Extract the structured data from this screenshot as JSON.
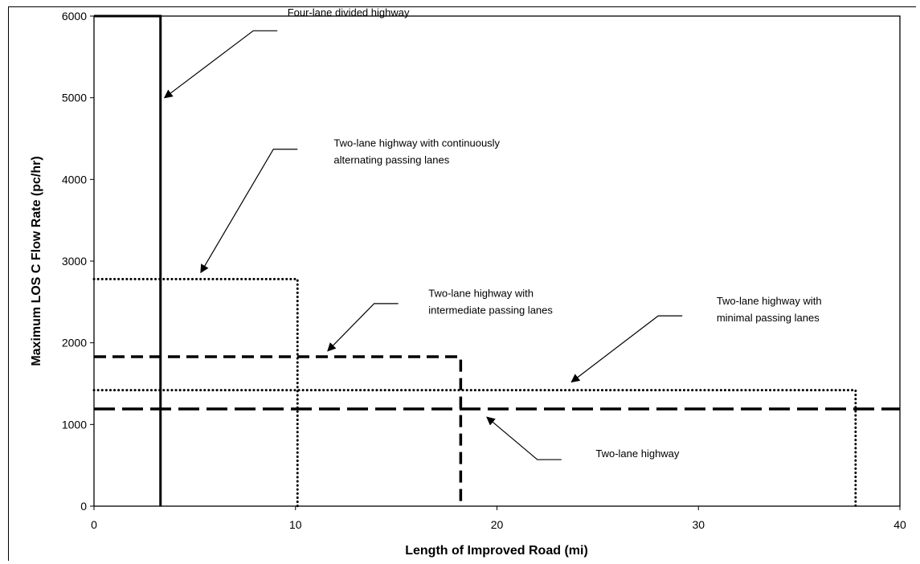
{
  "chart_data": {
    "type": "line",
    "title": "",
    "xlabel": "Length of Improved Road (mi)",
    "ylabel": "Maximum LOS C Flow Rate (pc/hr)",
    "xlim": [
      0,
      40
    ],
    "ylim": [
      0,
      6000
    ],
    "x_ticks": [
      0,
      10,
      20,
      30,
      40
    ],
    "y_ticks": [
      0,
      1000,
      2000,
      3000,
      4000,
      5000,
      6000
    ],
    "grid": false,
    "legend": "none",
    "series": [
      {
        "style": "solid",
        "points": [
          [
            0,
            6000
          ],
          [
            3.3,
            6000
          ],
          [
            3.3,
            0
          ]
        ]
      },
      {
        "style": "dotted",
        "points": [
          [
            0,
            2780
          ],
          [
            10.1,
            2780
          ],
          [
            10.1,
            0
          ]
        ]
      },
      {
        "style": "dashed",
        "points": [
          [
            0,
            1830
          ],
          [
            18.2,
            1830
          ],
          [
            18.2,
            0
          ]
        ]
      },
      {
        "style": "dotted",
        "points": [
          [
            0,
            1420
          ],
          [
            37.8,
            1420
          ],
          [
            37.8,
            0
          ]
        ]
      },
      {
        "style": "long-dashed",
        "points": [
          [
            0,
            1190
          ],
          [
            40,
            1190
          ]
        ]
      }
    ],
    "annotations": [
      {
        "lines": [
          "Four-lane divided highway"
        ],
        "text_at": [
          9.6,
          6000
        ],
        "elbow": [
          9.1,
          5820
        ],
        "arrow_to": [
          3.5,
          5000
        ]
      },
      {
        "lines": [
          "Two-lane highway with continuously",
          "alternating passing lanes"
        ],
        "text_at": [
          11.9,
          4400
        ],
        "elbow": [
          10.1,
          4370
        ],
        "arrow_to": [
          5.3,
          2860
        ]
      },
      {
        "lines": [
          "Two-lane highway with",
          "intermediate passing lanes"
        ],
        "text_at": [
          16.6,
          2560
        ],
        "elbow": [
          15.1,
          2480
        ],
        "arrow_to": [
          11.6,
          1900
        ]
      },
      {
        "lines": [
          "Two-lane highway with",
          "minimal passing lanes"
        ],
        "text_at": [
          30.9,
          2470
        ],
        "elbow": [
          29.2,
          2330
        ],
        "arrow_to": [
          23.7,
          1520
        ]
      },
      {
        "lines": [
          "Two-lane highway"
        ],
        "text_at": [
          24.9,
          600
        ],
        "elbow": [
          23.2,
          570
        ],
        "arrow_to": [
          19.5,
          1090
        ]
      }
    ]
  }
}
